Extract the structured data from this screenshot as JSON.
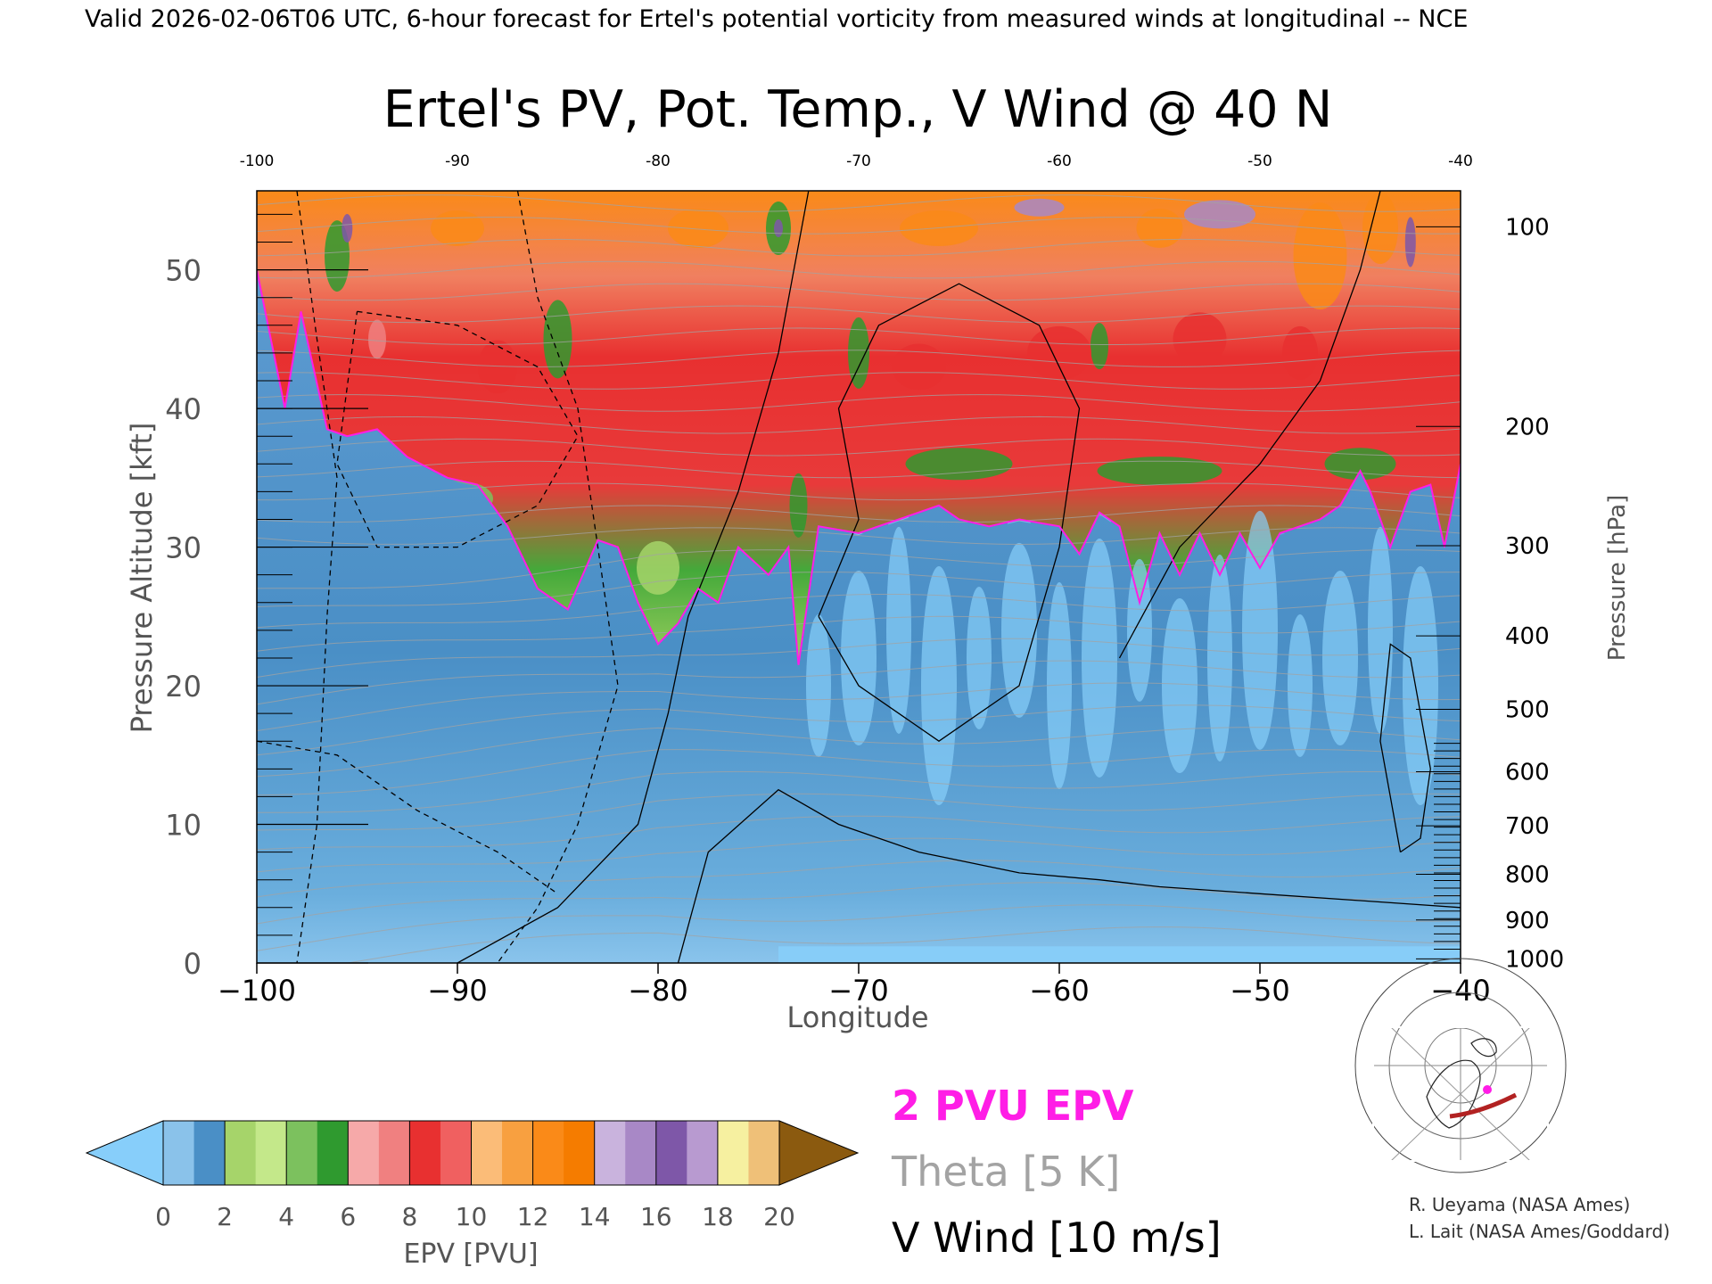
{
  "header": {
    "valid_line": "Valid 2026-02-06T06 UTC, 6-hour forecast for Ertel's potential vorticity from measured winds at longitudinal -- NCE"
  },
  "chart_data": {
    "type": "heatmap",
    "title": "Ertel's PV, Pot. Temp., V Wind @ 40 N",
    "xlabel": "Longitude",
    "ylabel": "Pressure Altitude [kft]",
    "y2label": "Pressure [hPa]",
    "xlim": [
      -100,
      -40
    ],
    "ylim": [
      0,
      55.7
    ],
    "x_ticks": [
      -100,
      -90,
      -80,
      -70,
      -60,
      -50,
      -40
    ],
    "x_tick_labels": [
      "−100",
      "−90",
      "−80",
      "−70",
      "−60",
      "−50",
      "−40"
    ],
    "top_tick_labels": [
      "-100",
      "-90",
      "-80",
      "-70",
      "-60",
      "-50",
      "-40"
    ],
    "y_ticks": [
      0,
      10,
      20,
      30,
      40,
      50
    ],
    "y_tick_labels": [
      "0",
      "10",
      "20",
      "30",
      "40",
      "50"
    ],
    "pressure_ticks": [
      {
        "hpa": 100,
        "kft": 53.1
      },
      {
        "hpa": 200,
        "kft": 38.7
      },
      {
        "hpa": 300,
        "kft": 30.1
      },
      {
        "hpa": 400,
        "kft": 23.6
      },
      {
        "hpa": 500,
        "kft": 18.3
      },
      {
        "hpa": 600,
        "kft": 13.8
      },
      {
        "hpa": 700,
        "kft": 9.9
      },
      {
        "hpa": 800,
        "kft": 6.4
      },
      {
        "hpa": 900,
        "kft": 3.1
      },
      {
        "hpa": 1000,
        "kft": 0.3
      }
    ],
    "tropopause_2pvu_kft": [
      [
        -100,
        50
      ],
      [
        -98.6,
        40
      ],
      [
        -97.8,
        47
      ],
      [
        -96.5,
        38.5
      ],
      [
        -95.5,
        38
      ],
      [
        -94,
        38.5
      ],
      [
        -92.5,
        36.5
      ],
      [
        -90.5,
        35
      ],
      [
        -89,
        34.5
      ],
      [
        -87.5,
        31.5
      ],
      [
        -86,
        27
      ],
      [
        -84.5,
        25.5
      ],
      [
        -83,
        30.5
      ],
      [
        -82,
        30
      ],
      [
        -81,
        26
      ],
      [
        -80,
        23
      ],
      [
        -79,
        24.5
      ],
      [
        -78,
        27
      ],
      [
        -77,
        26
      ],
      [
        -76,
        30
      ],
      [
        -74.5,
        28
      ],
      [
        -73.5,
        30
      ],
      [
        -73,
        21.5
      ],
      [
        -72,
        31.5
      ],
      [
        -70,
        31
      ],
      [
        -68,
        32
      ],
      [
        -66,
        33
      ],
      [
        -65,
        32
      ],
      [
        -63.5,
        31.5
      ],
      [
        -62,
        32
      ],
      [
        -60,
        31.5
      ],
      [
        -59,
        29.5
      ],
      [
        -58,
        32.5
      ],
      [
        -57,
        31.5
      ],
      [
        -56,
        26
      ],
      [
        -55,
        31
      ],
      [
        -54,
        28
      ],
      [
        -53,
        31
      ],
      [
        -52,
        28
      ],
      [
        -51,
        31
      ],
      [
        -50,
        28.5
      ],
      [
        -49,
        31
      ],
      [
        -47,
        32
      ],
      [
        -46,
        33
      ],
      [
        -45,
        35.5
      ],
      [
        -44.5,
        34
      ],
      [
        -43.5,
        30
      ],
      [
        -42.5,
        34
      ],
      [
        -41.5,
        34.5
      ],
      [
        -40.8,
        30
      ],
      [
        -40,
        36
      ]
    ],
    "colorbar": {
      "label": "EPV [PVU]",
      "min": 0,
      "max": 20,
      "step": 1,
      "tick_labels": [
        "0",
        "2",
        "4",
        "6",
        "8",
        "10",
        "12",
        "14",
        "16",
        "18",
        "20"
      ],
      "under_color": "#87CEFA",
      "over_color": "#8B5A0F",
      "colors": [
        "#8ac2ea",
        "#4a8fc6",
        "#a6d46a",
        "#c4e88a",
        "#7cc15e",
        "#2f9a2f",
        "#f6a9a9",
        "#f08080",
        "#e83030",
        "#f06060",
        "#fbbc78",
        "#f8a040",
        "#fa8a18",
        "#f57c00",
        "#c9b3dd",
        "#a888c6",
        "#7e57a8",
        "#b89ad0",
        "#f6f0a0",
        "#efc078"
      ]
    }
  },
  "legend": {
    "epv_contour": "2 PVU EPV",
    "theta": "Theta [5 K]",
    "vwind": "V Wind [10 m/s]",
    "epv_color": "#ff1de6",
    "theta_color": "#a3a3a3",
    "vwind_color": "#000000"
  },
  "credits": {
    "line1": "R. Ueyama (NASA Ames)",
    "line2": "L. Lait (NASA Ames/Goddard)"
  },
  "colors": {
    "pv_low": "#4a8fc6",
    "pv_lowest": "#87cefa",
    "trop_green": "#2f9a2f",
    "strat_red": "#e83030",
    "strat_orange": "#fa8a18",
    "strat_purple": "#7e57a8"
  }
}
